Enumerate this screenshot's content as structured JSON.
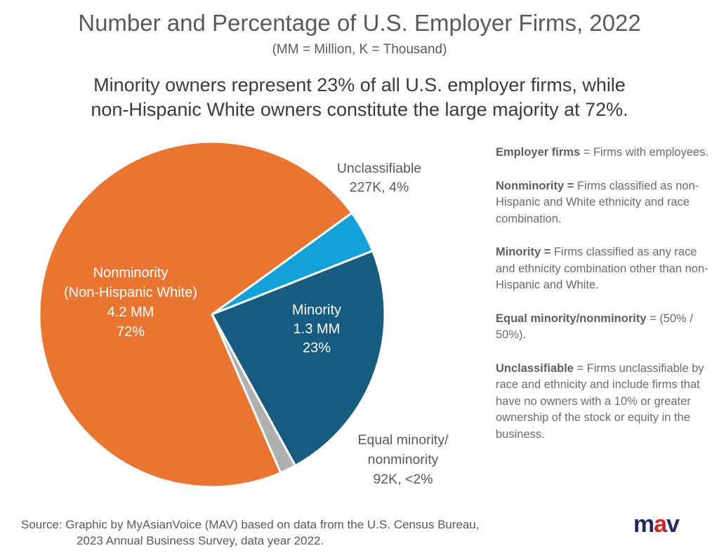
{
  "title": "Number and Percentage of U.S. Employer Firms, 2022",
  "subtitle": "(MM = Million, K = Thousand)",
  "headline_line1": "Minority owners represent 23% of all U.S. employer firms, while",
  "headline_line2": "non-Hispanic White owners constitute the large majority at 72%.",
  "chart_data": {
    "type": "pie",
    "title": "Number and Percentage of U.S. Employer Firms, 2022",
    "slices": [
      {
        "name": "Unclassifiable",
        "value": 4,
        "count_label": "227K, 4%",
        "label_lines": [
          "Unclassifiable",
          "227K, 4%"
        ],
        "color": "#14a1da",
        "label_color": "#595959"
      },
      {
        "name": "Minority",
        "value": 23,
        "label_lines": [
          "Minority",
          "1.3 MM",
          "23%"
        ],
        "color": "#175b81",
        "label_color": "#ffffff"
      },
      {
        "name": "Equal minority/nonminority",
        "value": 1.5,
        "label_lines": [
          "Equal minority/",
          "nonminority",
          "92K, <2%"
        ],
        "color": "#b0b0b0",
        "label_color": "#595959"
      },
      {
        "name": "Nonminority (Non-Hispanic White)",
        "value": 71.5,
        "label_lines": [
          "Nonminority",
          "(Non-Hispanic White)",
          "4.2 MM",
          "72%"
        ],
        "color": "#e97531",
        "label_color": "#ffffff"
      }
    ],
    "start_angle_deg": 54
  },
  "definitions": [
    {
      "term": "Employer firms",
      "text": " = Firms with employees."
    },
    {
      "term": "Nonminority =",
      "text": " Firms classified as non-Hispanic and White ethnicity and race combination."
    },
    {
      "term": "Minority =",
      "text": " Firms classified as any race and ethnicity combination other than non-Hispanic and White."
    },
    {
      "term": "Equal minority/nonminority",
      "text": " = (50% / 50%)."
    },
    {
      "term": "Unclassifiable",
      "text": " = Firms unclassifiable by race and ethnicity and include firms that have no owners with a 10% or greater ownership of the stock or equity in the business."
    }
  ],
  "source_line1": "Source:  Graphic by MyAsianVoice (MAV) based on data from the U.S. Census Bureau,",
  "source_line2": "2023 Annual Business Survey, data year 2022.",
  "logo": {
    "m": "m",
    "a": "a",
    "v": "v",
    "m_color": "#1f2b5c",
    "a_color": "#d41f26",
    "v_color": "#1f2b5c"
  }
}
